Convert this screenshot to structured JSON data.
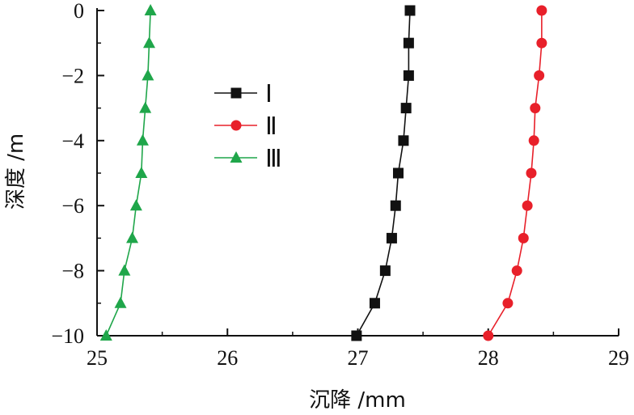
{
  "chart_data": {
    "type": "line",
    "xlabel": "沉降 /mm",
    "ylabel": "深度 /m",
    "xlim": [
      25,
      29
    ],
    "ylim": [
      -10,
      0
    ],
    "x_ticks": [
      "25",
      "26",
      "27",
      "28",
      "29"
    ],
    "y_ticks": [
      "0",
      "−2",
      "−4",
      "−6",
      "−8",
      "−10"
    ],
    "grid": false,
    "legend_position": "upper-left-center",
    "series": [
      {
        "name": "Ⅰ",
        "color": "#111111",
        "marker": "square",
        "points": [
          {
            "x": 27.4,
            "y": 0
          },
          {
            "x": 27.39,
            "y": -1
          },
          {
            "x": 27.39,
            "y": -2
          },
          {
            "x": 27.37,
            "y": -3
          },
          {
            "x": 27.35,
            "y": -4
          },
          {
            "x": 27.31,
            "y": -5
          },
          {
            "x": 27.29,
            "y": -6
          },
          {
            "x": 27.26,
            "y": -7
          },
          {
            "x": 27.21,
            "y": -8
          },
          {
            "x": 27.13,
            "y": -9
          },
          {
            "x": 26.99,
            "y": -10
          }
        ]
      },
      {
        "name": "Ⅱ",
        "color": "#e8202a",
        "marker": "circle",
        "points": [
          {
            "x": 28.41,
            "y": 0
          },
          {
            "x": 28.41,
            "y": -1
          },
          {
            "x": 28.39,
            "y": -2
          },
          {
            "x": 28.36,
            "y": -3
          },
          {
            "x": 28.35,
            "y": -4
          },
          {
            "x": 28.33,
            "y": -5
          },
          {
            "x": 28.3,
            "y": -6
          },
          {
            "x": 28.27,
            "y": -7
          },
          {
            "x": 28.22,
            "y": -8
          },
          {
            "x": 28.15,
            "y": -9
          },
          {
            "x": 28.0,
            "y": -10
          }
        ]
      },
      {
        "name": "Ⅲ",
        "color": "#1fa64a",
        "marker": "triangle",
        "points": [
          {
            "x": 25.41,
            "y": 0
          },
          {
            "x": 25.4,
            "y": -1
          },
          {
            "x": 25.39,
            "y": -2
          },
          {
            "x": 25.37,
            "y": -3
          },
          {
            "x": 25.35,
            "y": -4
          },
          {
            "x": 25.34,
            "y": -5
          },
          {
            "x": 25.3,
            "y": -6
          },
          {
            "x": 25.27,
            "y": -7
          },
          {
            "x": 25.21,
            "y": -8
          },
          {
            "x": 25.18,
            "y": -9
          },
          {
            "x": 25.07,
            "y": -10
          }
        ]
      }
    ]
  }
}
